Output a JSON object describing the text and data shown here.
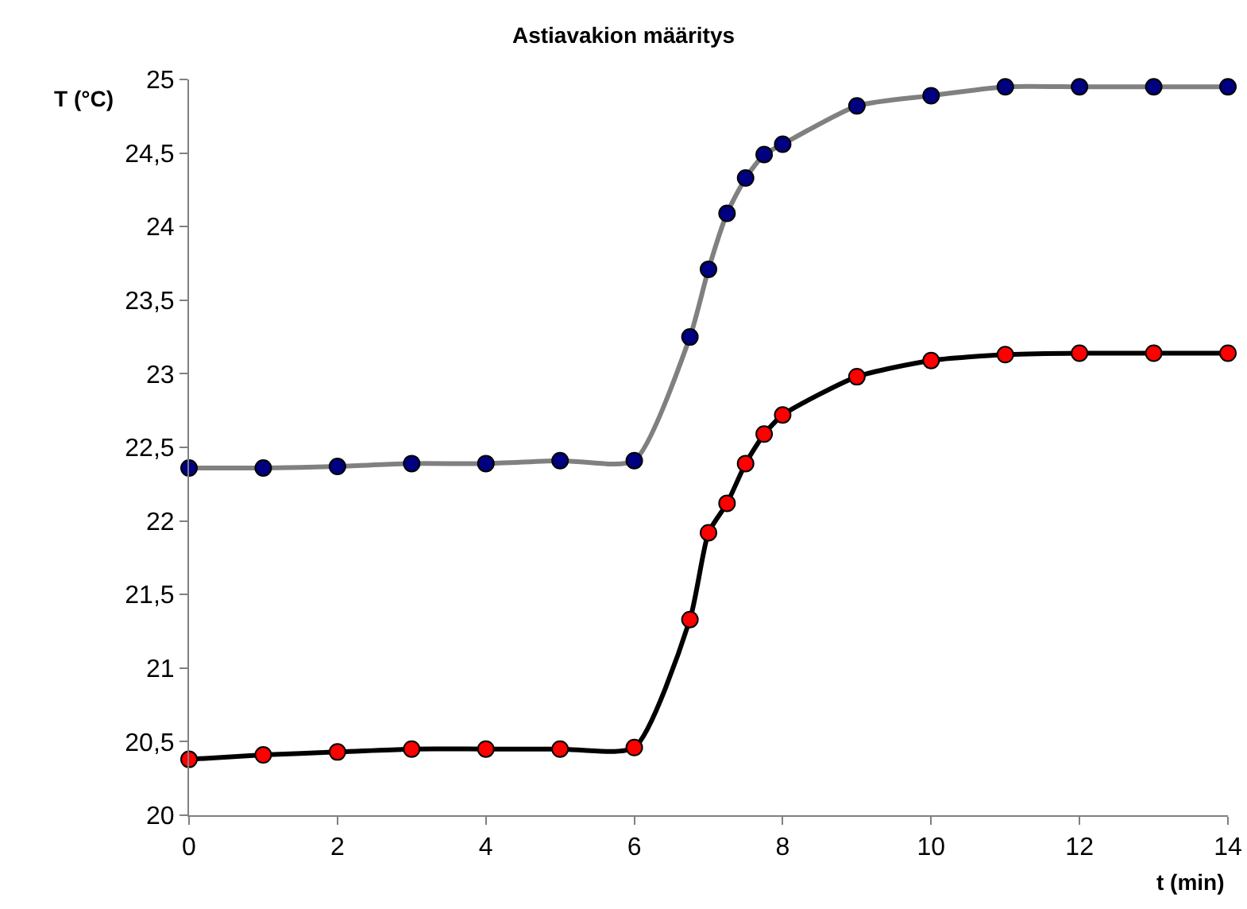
{
  "chart_data": {
    "type": "line",
    "title": "Astiavakion määritys",
    "xlabel": "t (min)",
    "ylabel": "T (°C)",
    "x": [
      0,
      1,
      2,
      3,
      4,
      5,
      6,
      6.75,
      7,
      7.25,
      7.5,
      7.75,
      8,
      9,
      10,
      11,
      12,
      13,
      14
    ],
    "series": [
      {
        "color": "#808080",
        "colors": [
          "#000080",
          "#000080",
          "#000080",
          "#000080",
          "#000080",
          "#000080",
          "#000080",
          "#000080",
          "#000080",
          "#000080",
          "#000080",
          "#000080",
          "#000080",
          "#000080",
          "#000080",
          "#000080",
          "#000080",
          "#000080",
          "#000080"
        ],
        "values": [
          22.36,
          22.36,
          22.37,
          22.39,
          22.39,
          22.41,
          22.41,
          23.25,
          23.71,
          24.09,
          24.33,
          24.49,
          24.56,
          24.82,
          24.89,
          24.95,
          24.95,
          24.95,
          24.95
        ]
      },
      {
        "color": "#000000",
        "colors": [
          "#ff0000",
          "#ff0000",
          "#ff0000",
          "#ff0000",
          "#ff0000",
          "#ff0000",
          "#ff0000",
          "#ff0000",
          "#ff0000",
          "#ff0000",
          "#ff0000",
          "#ff0000",
          "#ff0000",
          "#ff0000",
          "#ff0000",
          "#ff0000",
          "#ff0000",
          "#ff0000",
          "#ff0000"
        ],
        "values": [
          20.38,
          20.41,
          20.43,
          20.45,
          20.45,
          20.45,
          20.46,
          21.33,
          21.92,
          22.12,
          22.39,
          22.59,
          22.72,
          22.98,
          23.09,
          23.13,
          23.14,
          23.14,
          23.14
        ]
      }
    ],
    "xlim": [
      0,
      14
    ],
    "xticks": [
      0,
      2,
      4,
      6,
      8,
      10,
      12,
      14
    ],
    "ylim": [
      20,
      25
    ],
    "yticks": [
      20,
      {
        "value": 20.5,
        "label": "20,5"
      },
      21,
      {
        "value": 21.5,
        "label": "21,5"
      },
      22,
      {
        "value": 22.5,
        "label": "22,5"
      },
      23,
      {
        "value": 23.5,
        "label": "23,5"
      },
      24,
      {
        "value": 24.5,
        "label": "24,5"
      },
      25
    ],
    "grid": false,
    "marker": "circle",
    "line_style": "solid"
  }
}
